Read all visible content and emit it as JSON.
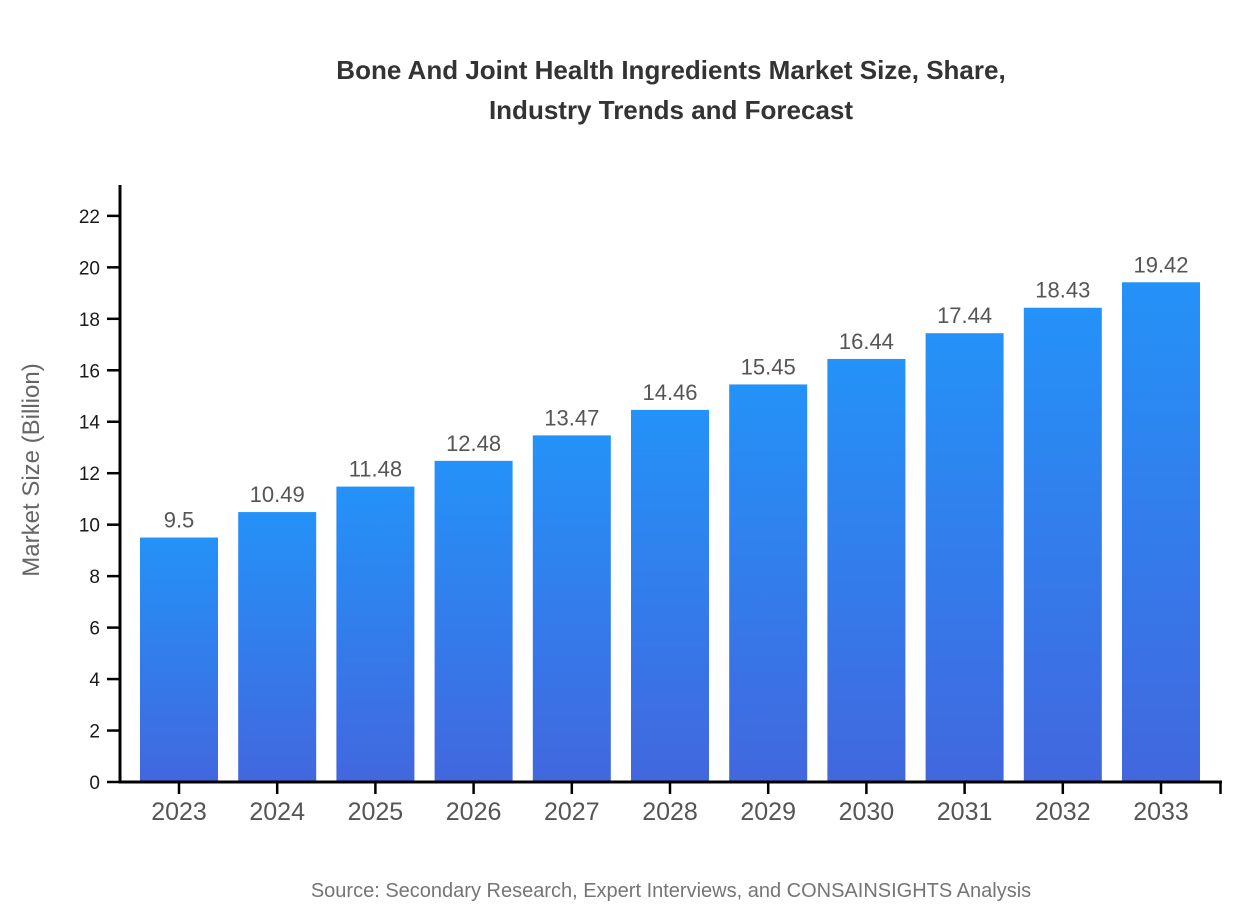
{
  "title_lines": [
    "Bone And Joint Health Ingredients Market Size, Share,",
    "Industry Trends and Forecast"
  ],
  "y_axis_label": "Market Size (Billion)",
  "source_note": "Source: Secondary Research, Expert Interviews, and CONSAINSIGHTS Analysis",
  "chart_data": {
    "type": "bar",
    "title": "Bone And Joint Health Ingredients Market Size, Share, Industry Trends and Forecast",
    "categories": [
      "2023",
      "2024",
      "2025",
      "2026",
      "2027",
      "2028",
      "2029",
      "2030",
      "2031",
      "2032",
      "2033"
    ],
    "values": [
      9.5,
      10.49,
      11.48,
      12.48,
      13.47,
      14.46,
      15.45,
      16.44,
      17.44,
      18.43,
      19.42
    ],
    "data_labels": [
      "9.5",
      "10.49",
      "11.48",
      "12.48",
      "13.47",
      "14.46",
      "15.45",
      "16.44",
      "17.44",
      "18.43",
      "19.42"
    ],
    "xlabel": "",
    "ylabel": "Market Size (Billion)",
    "ylim": [
      0,
      23.2
    ],
    "yticks": [
      0,
      2,
      4,
      6,
      8,
      10,
      12,
      14,
      16,
      18,
      20,
      22
    ],
    "grid": false,
    "legend": "none",
    "colors": {
      "bar_gradient_top": "#2492F8",
      "bar_gradient_bottom": "#4267DE",
      "axis": "#000000",
      "ytick_text": "#1a1a1a",
      "xtick_text": "#555555",
      "value_text": "#555555",
      "title_text": "#333333",
      "source_text": "#757575"
    }
  }
}
